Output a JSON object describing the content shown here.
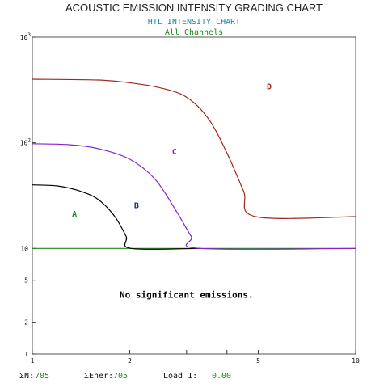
{
  "window": {
    "title": "ACOUSTIC EMISSION INTENSITY GRADING CHART"
  },
  "chart_data": {
    "type": "line",
    "title": "HTL INTENSITY CHART",
    "subtitle": "All Channels",
    "xscale": "log",
    "yscale": "log",
    "xlim": [
      1,
      10
    ],
    "ylim": [
      1,
      1000
    ],
    "x_ticks": [
      {
        "value": 1,
        "label": "1"
      },
      {
        "value": 2,
        "label": "2"
      },
      {
        "value": 3,
        "label": ""
      },
      {
        "value": 4,
        "label": ""
      },
      {
        "value": 5,
        "label": "5"
      },
      {
        "value": 10,
        "label": "10"
      }
    ],
    "y_ticks": [
      {
        "value": 1,
        "label": "1"
      },
      {
        "value": 2,
        "label": "2"
      },
      {
        "value": 5,
        "label": "5"
      },
      {
        "value": 10,
        "label": "10"
      },
      {
        "value": 100,
        "label": "10",
        "sup": "2"
      },
      {
        "value": 1000,
        "label": "10",
        "sup": "3"
      }
    ],
    "series": [
      {
        "color": "#1a8a1a",
        "x": [
          1,
          10
        ],
        "y": [
          10,
          10
        ]
      },
      {
        "color": "#000000",
        "x": [
          1,
          1.2,
          1.4,
          1.6,
          1.8,
          1.95,
          2.02,
          3.3
        ],
        "y": [
          40,
          39,
          35,
          29,
          20,
          13,
          10,
          10
        ]
      },
      {
        "color": "#8a22c8",
        "x": [
          1,
          1.3,
          1.6,
          2.0,
          2.4,
          2.8,
          3.1,
          3.3,
          10
        ],
        "y": [
          98,
          96,
          88,
          70,
          45,
          22,
          13,
          10,
          10
        ]
      },
      {
        "color": "#a02a1e",
        "x": [
          1,
          1.6,
          2.0,
          2.5,
          3.0,
          3.5,
          4.0,
          4.5,
          4.9,
          10
        ],
        "y": [
          400,
          393,
          370,
          330,
          270,
          170,
          80,
          35,
          20,
          20
        ]
      }
    ],
    "annotations": [
      {
        "text": "A",
        "x": 1.35,
        "y": 20,
        "color": "#1a8a1a"
      },
      {
        "text": "B",
        "x": 2.1,
        "y": 24,
        "color": "#1a2a8a"
      },
      {
        "text": "C",
        "x": 2.75,
        "y": 78,
        "color": "#8a22c8"
      },
      {
        "text": "D",
        "x": 5.4,
        "y": 320,
        "color": "#a02a1e"
      },
      {
        "text": "No significant emissions.",
        "x": 3.0,
        "y": 3.4,
        "color": "#000000"
      }
    ],
    "grid": false
  },
  "status": {
    "count_label": "ΣN:",
    "count_value": "705",
    "energy_label": "ΣEner:",
    "energy_value": "705",
    "load_label": "Load 1:",
    "load_value": "0.00"
  }
}
